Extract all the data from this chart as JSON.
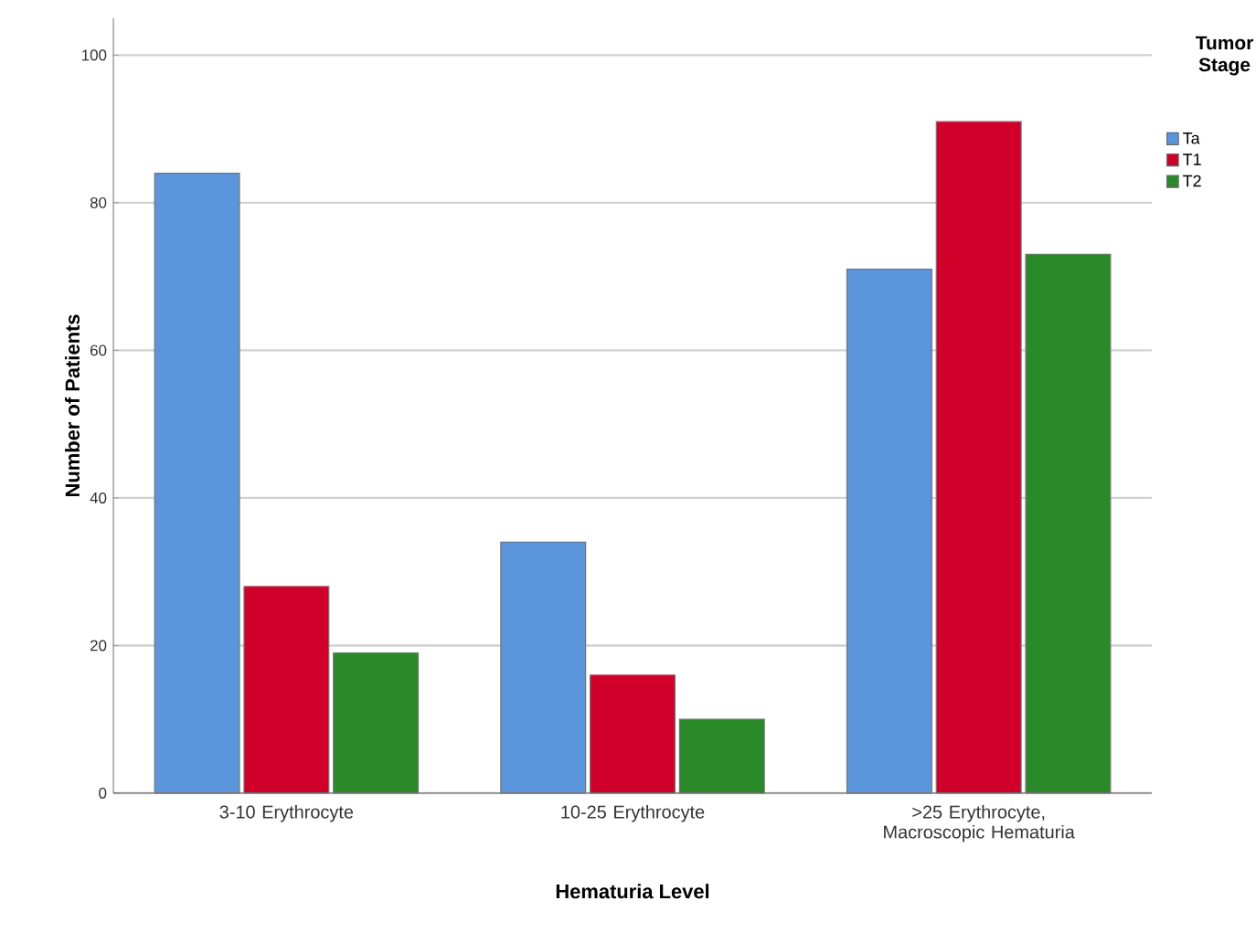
{
  "chart_data": {
    "type": "bar",
    "xlabel": "Hematuria Level",
    "ylabel": "Number of Patients",
    "legend_title": "Tumor Stage",
    "categories": [
      "3-10 Erythrocyte",
      "10-25 Erythrocyte",
      ">25 Erythrocyte, Macroscopic Hematuria"
    ],
    "series": [
      {
        "name": "Ta",
        "color": "#5b95dc",
        "values": [
          84,
          34,
          71
        ]
      },
      {
        "name": "T1",
        "color": "#d0002a",
        "values": [
          28,
          16,
          91
        ]
      },
      {
        "name": "T2",
        "color": "#2a8a2a",
        "values": [
          19,
          10,
          73
        ]
      }
    ],
    "ylim": [
      0,
      105
    ],
    "yticks": [
      0,
      20,
      40,
      60,
      80,
      100
    ],
    "grid": "y",
    "legend": "top right"
  }
}
